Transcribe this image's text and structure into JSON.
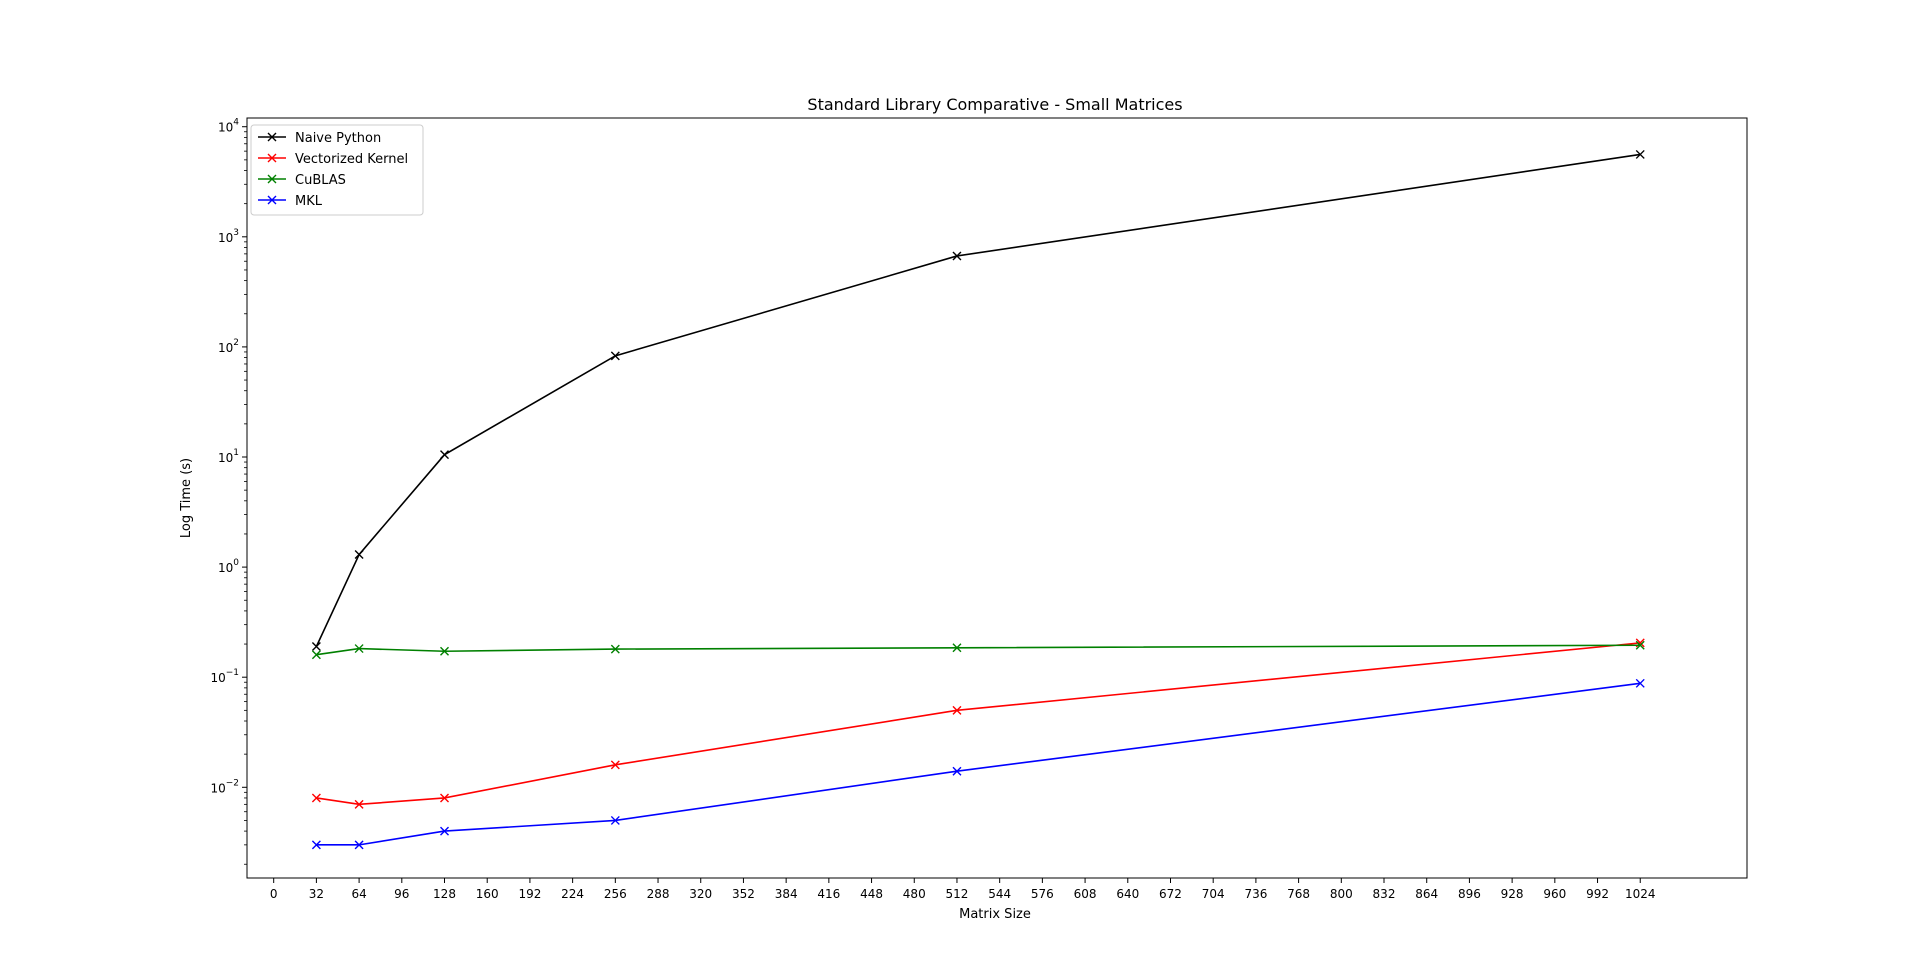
{
  "chart_data": {
    "type": "line",
    "title": "Standard Library Comparative - Small Matrices",
    "xlabel": "Matrix Size",
    "ylabel": "Log Time (s)",
    "yscale": "log",
    "xlim": [
      -20,
      1104
    ],
    "ylim": [
      0.0015,
      12000
    ],
    "xticks": [
      0,
      32,
      64,
      96,
      128,
      160,
      192,
      224,
      256,
      288,
      320,
      352,
      384,
      416,
      448,
      480,
      512,
      544,
      576,
      608,
      640,
      672,
      704,
      736,
      768,
      800,
      832,
      864,
      896,
      928,
      960,
      992,
      1024
    ],
    "yticks": [
      {
        "value": 0.01,
        "base": "10",
        "exp": "−2"
      },
      {
        "value": 0.1,
        "base": "10",
        "exp": "−1"
      },
      {
        "value": 1,
        "base": "10",
        "exp": "0"
      },
      {
        "value": 10,
        "base": "10",
        "exp": "1"
      },
      {
        "value": 100,
        "base": "10",
        "exp": "2"
      },
      {
        "value": 1000,
        "base": "10",
        "exp": "3"
      },
      {
        "value": 10000,
        "base": "10",
        "exp": "4"
      }
    ],
    "grid": false,
    "legend_position": "top-left",
    "marker": "x",
    "x": [
      32,
      64,
      128,
      256,
      512,
      1024
    ],
    "series": [
      {
        "name": "Naive Python",
        "color": "#000000",
        "values": [
          0.19,
          1.3,
          10.5,
          83,
          670,
          5600
        ]
      },
      {
        "name": "Vectorized Kernel",
        "color": "#ff0000",
        "values": [
          0.008,
          0.007,
          0.008,
          0.016,
          0.05,
          0.205
        ]
      },
      {
        "name": "CuBLAS",
        "color": "#008000",
        "values": [
          0.16,
          0.182,
          0.172,
          0.18,
          0.185,
          0.195
        ]
      },
      {
        "name": "MKL",
        "color": "#0000ff",
        "values": [
          0.003,
          0.003,
          0.004,
          0.005,
          0.014,
          0.088
        ]
      }
    ]
  }
}
